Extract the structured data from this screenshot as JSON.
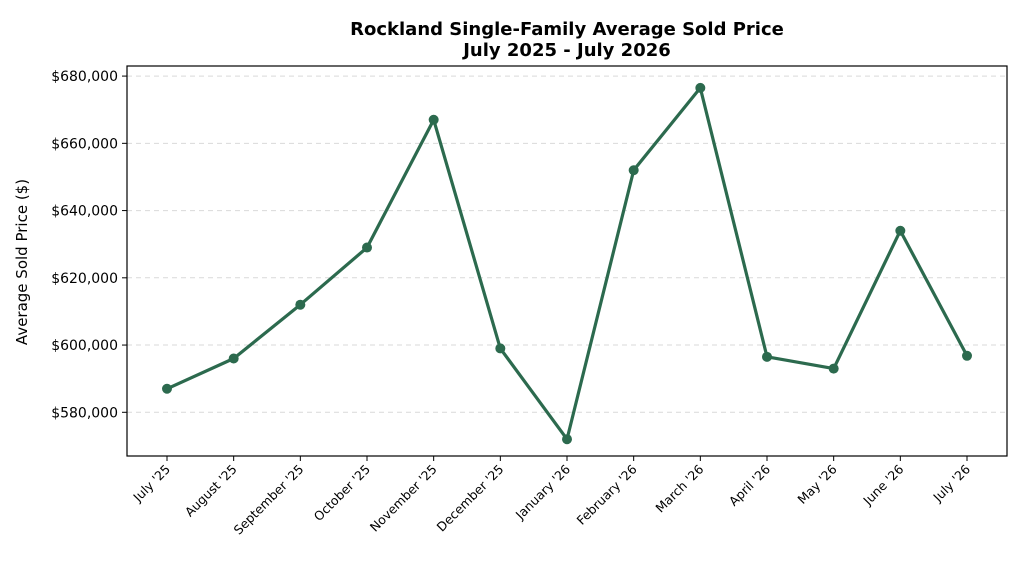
{
  "chart_data": {
    "type": "line",
    "title": "Rockland Single-Family Average Sold Price",
    "subtitle": "July 2025 - July 2026",
    "xlabel": "",
    "ylabel": "Average Sold Price ($)",
    "categories": [
      "July '25",
      "August '25",
      "September '25",
      "October '25",
      "November '25",
      "December '25",
      "January '26",
      "February '26",
      "March '26",
      "April '26",
      "May '26",
      "June '26",
      "July '26"
    ],
    "series": [
      {
        "values": [
          587000,
          596000,
          612000,
          629000,
          667000,
          599000,
          572000,
          652000,
          676500,
          596500,
          593000,
          634000,
          596800
        ]
      }
    ],
    "ylim": [
      567000,
      683000
    ],
    "yticks": [
      580000,
      600000,
      620000,
      640000,
      660000,
      680000
    ],
    "ytick_labels": [
      "$580,000",
      "$600,000",
      "$620,000",
      "$640,000",
      "$660,000",
      "$680,000"
    ],
    "grid": true,
    "line_color": "#2c6a4e"
  }
}
